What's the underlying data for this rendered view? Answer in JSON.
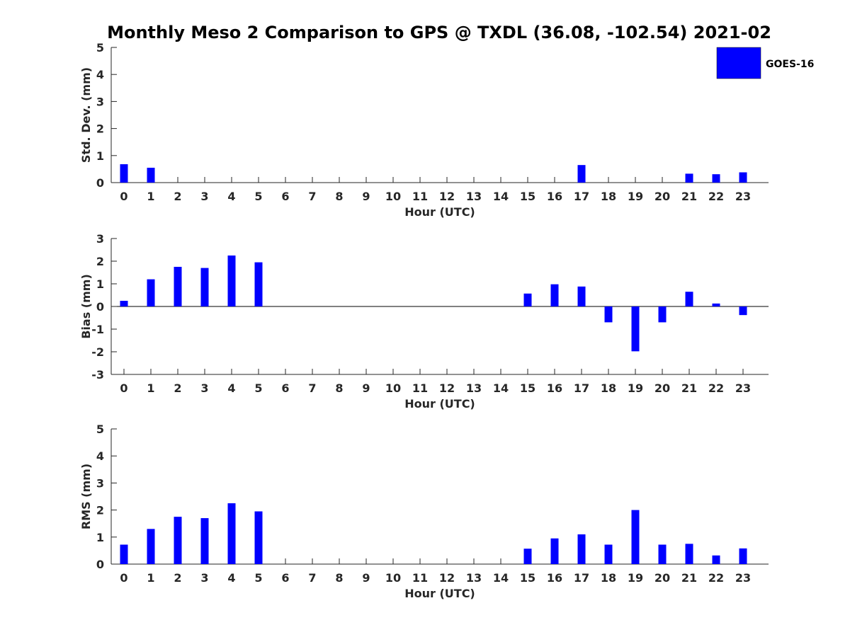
{
  "chart_data": {
    "type": "bar",
    "title": "Monthly Meso 2 Comparison to GPS @ TXDL (36.08, -102.54) 2021-02",
    "legend": {
      "label": "GOES-16",
      "placement": "top-right"
    },
    "bar_color": "#0000ff",
    "categories": [
      "0",
      "1",
      "2",
      "3",
      "4",
      "5",
      "6",
      "7",
      "8",
      "9",
      "10",
      "11",
      "12",
      "13",
      "14",
      "15",
      "16",
      "17",
      "18",
      "19",
      "20",
      "21",
      "22",
      "23"
    ],
    "panels": [
      {
        "ylabel": "Std. Dev. (mm)",
        "xlabel": "Hour (UTC)",
        "ylim": [
          0,
          5
        ],
        "yticks": [
          "0",
          "1",
          "2",
          "3",
          "4",
          "5"
        ],
        "values": [
          0.68,
          0.55,
          null,
          null,
          null,
          null,
          null,
          null,
          null,
          null,
          null,
          null,
          null,
          null,
          null,
          null,
          null,
          0.65,
          null,
          null,
          null,
          0.33,
          0.31,
          0.38
        ]
      },
      {
        "ylabel": "Bias (mm)",
        "xlabel": "Hour (UTC)",
        "ylim": [
          -3,
          3
        ],
        "yticks": [
          "-3",
          "-2",
          "-1",
          "0",
          "1",
          "2",
          "3"
        ],
        "values": [
          0.25,
          1.2,
          1.75,
          1.7,
          2.25,
          1.95,
          null,
          null,
          null,
          null,
          null,
          null,
          null,
          null,
          null,
          0.57,
          0.98,
          0.88,
          -0.7,
          -1.98,
          -0.7,
          0.65,
          0.13,
          -0.38
        ]
      },
      {
        "ylabel": "RMS (mm)",
        "xlabel": "Hour (UTC)",
        "ylim": [
          0,
          5
        ],
        "yticks": [
          "0",
          "1",
          "2",
          "3",
          "4",
          "5"
        ],
        "values": [
          0.72,
          1.3,
          1.75,
          1.7,
          2.25,
          1.95,
          null,
          null,
          null,
          null,
          null,
          null,
          null,
          null,
          null,
          0.57,
          0.95,
          1.1,
          0.72,
          2.0,
          0.72,
          0.75,
          0.32,
          0.58
        ]
      }
    ]
  }
}
